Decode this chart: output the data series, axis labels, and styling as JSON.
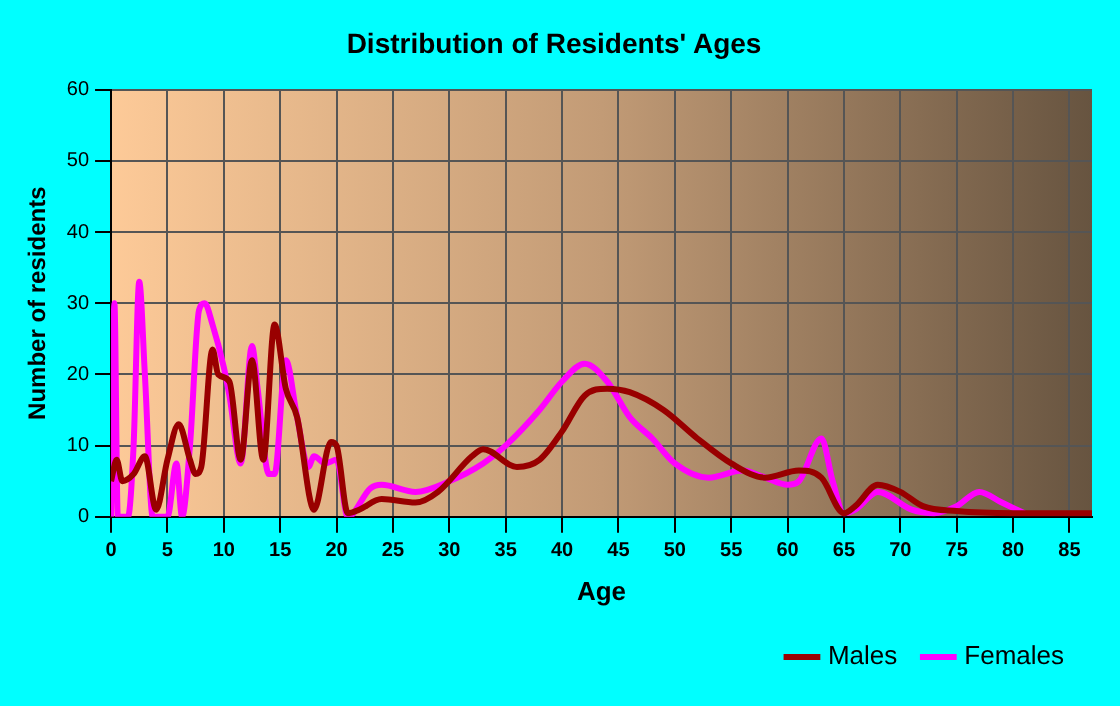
{
  "chart_data": {
    "type": "line",
    "title": "Distribution of Residents' Ages",
    "xlabel": "Age",
    "ylabel": "Number of residents",
    "xlim": [
      0,
      87
    ],
    "xticks": [
      0,
      5,
      10,
      15,
      20,
      25,
      30,
      35,
      40,
      45,
      50,
      55,
      60,
      65,
      70,
      75,
      80,
      85
    ],
    "ylim": [
      0,
      60
    ],
    "yticks": [
      0,
      10,
      20,
      30,
      40,
      50,
      60
    ],
    "grid": true,
    "legend": "bottom right",
    "marker": "none",
    "line_style": "solid",
    "series": [
      {
        "name": "Males",
        "color": "#990000",
        "x": [
          0,
          0.5,
          1,
          2,
          3,
          4,
          5,
          6,
          7,
          7.5,
          8,
          9,
          9.5,
          10.5,
          11.5,
          12.5,
          13.5,
          14.5,
          15.5,
          16.5,
          18,
          19.5,
          20,
          21,
          22,
          24,
          27,
          29,
          32,
          33,
          36,
          38,
          40,
          42,
          44,
          46,
          49,
          52,
          55,
          58,
          61,
          63,
          65,
          66,
          68,
          70,
          72,
          75,
          80,
          87
        ],
        "values": [
          5,
          8,
          5,
          6,
          8.5,
          1,
          8,
          13,
          8,
          6,
          7,
          23.5,
          20,
          19,
          8,
          22,
          8,
          27,
          18,
          14,
          1,
          10.5,
          10,
          0.5,
          1,
          2.5,
          2,
          3.5,
          8.5,
          9.5,
          7,
          8,
          12,
          17,
          18,
          17.5,
          15,
          11,
          7.5,
          5.5,
          6.5,
          5.5,
          0.5,
          1.5,
          4.5,
          3.5,
          1.5,
          0.8,
          0.5,
          0.5
        ]
      },
      {
        "name": "Females",
        "color": "#ff00ff",
        "x": [
          0,
          0.3,
          0.6,
          1.5,
          2,
          2.5,
          3,
          3.7,
          5,
          5.8,
          6.3,
          7,
          7.8,
          8.3,
          9,
          10,
          10.5,
          11.5,
          12.5,
          13,
          14,
          14.5,
          15.5,
          16.5,
          17.5,
          18,
          19,
          20,
          21,
          23,
          24,
          27,
          30,
          33,
          35,
          38,
          40,
          42,
          44,
          46,
          48,
          50,
          53,
          56,
          58,
          60,
          61,
          63,
          64,
          65,
          66,
          68,
          71,
          73,
          75,
          77,
          79,
          81
        ],
        "values": [
          0,
          30,
          0,
          0,
          10,
          33,
          20,
          0,
          0,
          7.5,
          0,
          10,
          29,
          30,
          27,
          21,
          17,
          7.5,
          24,
          18,
          6,
          6,
          22,
          14,
          7,
          8.5,
          7.5,
          8,
          0,
          4,
          4.5,
          3.5,
          5,
          7.5,
          10,
          15,
          19,
          21.5,
          19,
          14,
          11,
          7.5,
          5.5,
          6.5,
          5.5,
          4.5,
          5,
          11,
          5,
          0.5,
          1,
          3.5,
          1,
          0.5,
          1.5,
          3.5,
          2,
          0.5
        ]
      }
    ]
  }
}
